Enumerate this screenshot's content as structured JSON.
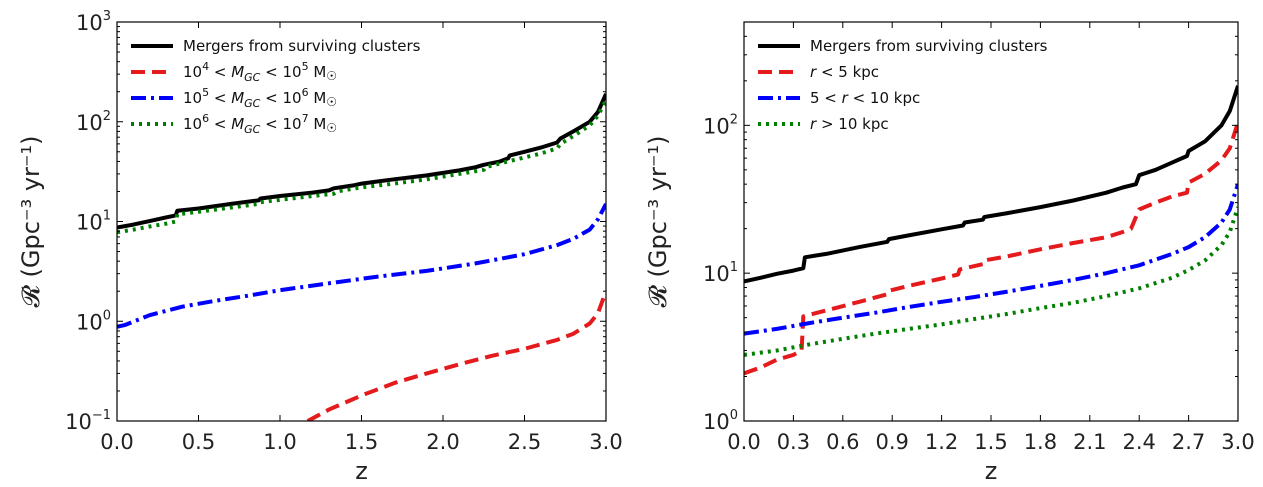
{
  "chart_data": [
    {
      "type": "line",
      "title": "",
      "xlabel": "z",
      "ylabel": "𝓡 (Gpc⁻³ yr⁻¹)",
      "xscale": "linear",
      "yscale": "log",
      "xlim": [
        0,
        3
      ],
      "ylim": [
        0.1,
        1000
      ],
      "x_ticks": [
        "0.0",
        "0.5",
        "1.0",
        "1.5",
        "2.0",
        "2.5",
        "3.0"
      ],
      "x_tick_values": [
        0,
        0.5,
        1.0,
        1.5,
        2.0,
        2.5,
        3.0
      ],
      "y_ticks": [
        {
          "value": 0.1,
          "base": "10",
          "exp": "−1"
        },
        {
          "value": 1,
          "base": "10",
          "exp": "0"
        },
        {
          "value": 10,
          "base": "10",
          "exp": "1"
        },
        {
          "value": 100,
          "base": "10",
          "exp": "2"
        },
        {
          "value": 1000,
          "base": "10",
          "exp": "3"
        }
      ],
      "grid": false,
      "legend_position": "top-left",
      "series": [
        {
          "name": "Mergers from surviving clusters",
          "legend": {
            "pre": "Mergers from surviving clusters"
          },
          "color": "#000000",
          "style": "solid",
          "x": [
            0.0,
            0.1,
            0.2,
            0.3,
            0.36,
            0.37,
            0.5,
            0.7,
            0.87,
            0.88,
            1.0,
            1.2,
            1.3,
            1.33,
            1.45,
            1.5,
            1.7,
            1.9,
            2.1,
            2.2,
            2.25,
            2.35,
            2.4,
            2.41,
            2.5,
            2.6,
            2.7,
            2.72,
            2.8,
            2.9,
            2.95,
            3.0
          ],
          "y": [
            8.7,
            9.3,
            10.1,
            11.0,
            11.5,
            12.8,
            13.5,
            15.0,
            16.3,
            17.0,
            18.0,
            19.5,
            20.5,
            21.5,
            23.0,
            24.0,
            26.5,
            29.0,
            32.5,
            35.0,
            37.0,
            40.0,
            43.0,
            46.0,
            50.0,
            55.0,
            62.0,
            68.0,
            80.0,
            100.0,
            125.0,
            190.0
          ]
        },
        {
          "name": "10⁴ < M_GC < 10⁵ M☉",
          "legend": {
            "pre": "10",
            "sup1": "4",
            "mid1": " < ",
            "m": "M",
            "sub": "GC",
            "mid2": " < 10",
            "sup2": "5",
            "post": " M",
            "sun": "☉"
          },
          "color": "#e41a1c",
          "style": "dashed",
          "x": [
            1.17,
            1.3,
            1.5,
            1.7,
            1.9,
            2.1,
            2.3,
            2.5,
            2.7,
            2.8,
            2.9,
            2.95,
            3.0
          ],
          "y": [
            0.1,
            0.13,
            0.18,
            0.24,
            0.3,
            0.37,
            0.45,
            0.53,
            0.65,
            0.75,
            0.95,
            1.2,
            2.0
          ]
        },
        {
          "name": "10⁵ < M_GC < 10⁶ M☉",
          "legend": {
            "pre": "10",
            "sup1": "5",
            "mid1": " < ",
            "m": "M",
            "sub": "GC",
            "mid2": " < 10",
            "sup2": "6",
            "post": " M",
            "sun": "☉"
          },
          "color": "#0000ff",
          "style": "dashdot",
          "x": [
            0.0,
            0.05,
            0.2,
            0.4,
            0.6,
            0.8,
            1.0,
            1.3,
            1.6,
            1.9,
            2.2,
            2.5,
            2.7,
            2.8,
            2.9,
            2.95,
            3.0
          ],
          "y": [
            0.88,
            0.92,
            1.15,
            1.4,
            1.6,
            1.8,
            2.05,
            2.4,
            2.8,
            3.2,
            3.8,
            4.7,
            5.8,
            6.7,
            8.3,
            10.5,
            15.0
          ]
        },
        {
          "name": "10⁶ < M_GC < 10⁷ M☉",
          "legend": {
            "pre": "10",
            "sup1": "6",
            "mid1": " < ",
            "m": "M",
            "sub": "GC",
            "mid2": " < 10",
            "sup2": "7",
            "post": " M",
            "sun": "☉"
          },
          "color": "#008000",
          "style": "dotted",
          "x": [
            0.0,
            0.1,
            0.2,
            0.3,
            0.36,
            0.37,
            0.5,
            0.7,
            0.87,
            0.88,
            1.0,
            1.2,
            1.33,
            1.35,
            1.5,
            1.7,
            1.9,
            2.1,
            2.25,
            2.26,
            2.4,
            2.6,
            2.7,
            2.72,
            2.8,
            2.9,
            2.95,
            3.0
          ],
          "y": [
            7.8,
            8.3,
            8.9,
            9.5,
            10.0,
            11.8,
            12.5,
            13.8,
            15.0,
            15.6,
            16.5,
            18.0,
            19.0,
            20.0,
            22.0,
            24.0,
            26.5,
            30.0,
            33.0,
            35.0,
            40.0,
            48.0,
            54.0,
            60.0,
            72.0,
            92.0,
            115.0,
            165.0
          ]
        }
      ]
    },
    {
      "type": "line",
      "title": "",
      "xlabel": "z",
      "ylabel": "𝓡 (Gpc⁻³ yr⁻¹)",
      "xscale": "linear",
      "yscale": "log",
      "xlim": [
        0,
        3
      ],
      "ylim": [
        1,
        500
      ],
      "x_ticks": [
        "0.0",
        "0.3",
        "0.6",
        "0.9",
        "1.2",
        "1.5",
        "1.8",
        "2.1",
        "2.4",
        "2.7",
        "3.0"
      ],
      "x_tick_values": [
        0,
        0.3,
        0.6,
        0.9,
        1.2,
        1.5,
        1.8,
        2.1,
        2.4,
        2.7,
        3.0
      ],
      "y_ticks": [
        {
          "value": 1,
          "base": "10",
          "exp": "0"
        },
        {
          "value": 10,
          "base": "10",
          "exp": "1"
        },
        {
          "value": 100,
          "base": "10",
          "exp": "2"
        }
      ],
      "grid": false,
      "legend_position": "top-left",
      "series": [
        {
          "name": "Mergers from surviving clusters",
          "legend": {
            "pre": "Mergers from surviving clusters"
          },
          "color": "#000000",
          "style": "solid",
          "x": [
            0.0,
            0.1,
            0.2,
            0.3,
            0.36,
            0.37,
            0.5,
            0.7,
            0.87,
            0.88,
            1.0,
            1.2,
            1.33,
            1.34,
            1.45,
            1.46,
            1.6,
            1.8,
            2.0,
            2.2,
            2.3,
            2.38,
            2.4,
            2.5,
            2.6,
            2.69,
            2.7,
            2.8,
            2.9,
            2.95,
            3.0
          ],
          "y": [
            8.8,
            9.3,
            9.9,
            10.4,
            10.8,
            12.8,
            13.5,
            15.0,
            16.3,
            17.0,
            18.0,
            19.8,
            21.0,
            22.0,
            23.0,
            24.0,
            25.5,
            28.0,
            31.0,
            35.0,
            38.0,
            40.0,
            46.0,
            50.0,
            56.0,
            62.0,
            67.0,
            78.0,
            100.0,
            125.0,
            185.0
          ]
        },
        {
          "name": "r < 5 kpc",
          "legend": {
            "r": "r",
            "post": " < 5 kpc"
          },
          "color": "#e41a1c",
          "style": "dashed",
          "x": [
            0.0,
            0.1,
            0.2,
            0.3,
            0.35,
            0.36,
            0.5,
            0.7,
            0.87,
            0.88,
            1.0,
            1.2,
            1.3,
            1.31,
            1.45,
            1.46,
            1.6,
            1.8,
            2.0,
            2.2,
            2.3,
            2.35,
            2.4,
            2.5,
            2.6,
            2.69,
            2.7,
            2.8,
            2.9,
            2.95,
            3.0
          ],
          "y": [
            2.1,
            2.3,
            2.6,
            2.8,
            3.0,
            5.1,
            5.6,
            6.4,
            7.2,
            7.6,
            8.2,
            9.2,
            9.8,
            10.6,
            11.5,
            12.2,
            13.0,
            14.5,
            16.0,
            17.5,
            19.0,
            20.0,
            27.0,
            30.0,
            33.0,
            35.0,
            41.0,
            47.0,
            58.0,
            70.0,
            105.0
          ]
        },
        {
          "name": "5 < r < 10 kpc",
          "legend": {
            "pre": "5 < ",
            "r": "r",
            "post": " < 10 kpc"
          },
          "color": "#0000ff",
          "style": "dashdot",
          "x": [
            0.0,
            0.2,
            0.4,
            0.6,
            0.8,
            1.0,
            1.2,
            1.4,
            1.6,
            1.8,
            2.0,
            2.2,
            2.4,
            2.6,
            2.7,
            2.8,
            2.9,
            2.95,
            3.0
          ],
          "y": [
            3.9,
            4.2,
            4.6,
            5.0,
            5.4,
            5.9,
            6.4,
            6.9,
            7.5,
            8.2,
            9.0,
            10.0,
            11.3,
            13.5,
            15.0,
            17.5,
            22.0,
            27.0,
            40.0
          ]
        },
        {
          "name": "r > 10 kpc",
          "legend": {
            "r": "r",
            "post": " > 10 kpc"
          },
          "color": "#008000",
          "style": "dotted",
          "x": [
            0.0,
            0.2,
            0.4,
            0.6,
            0.8,
            1.0,
            1.2,
            1.4,
            1.6,
            1.8,
            2.0,
            2.2,
            2.4,
            2.6,
            2.7,
            2.8,
            2.9,
            2.95,
            3.0
          ],
          "y": [
            2.8,
            3.0,
            3.3,
            3.6,
            3.9,
            4.2,
            4.5,
            4.9,
            5.3,
            5.8,
            6.3,
            7.0,
            7.9,
            9.3,
            10.5,
            12.2,
            15.5,
            19.0,
            28.0
          ]
        }
      ]
    }
  ]
}
